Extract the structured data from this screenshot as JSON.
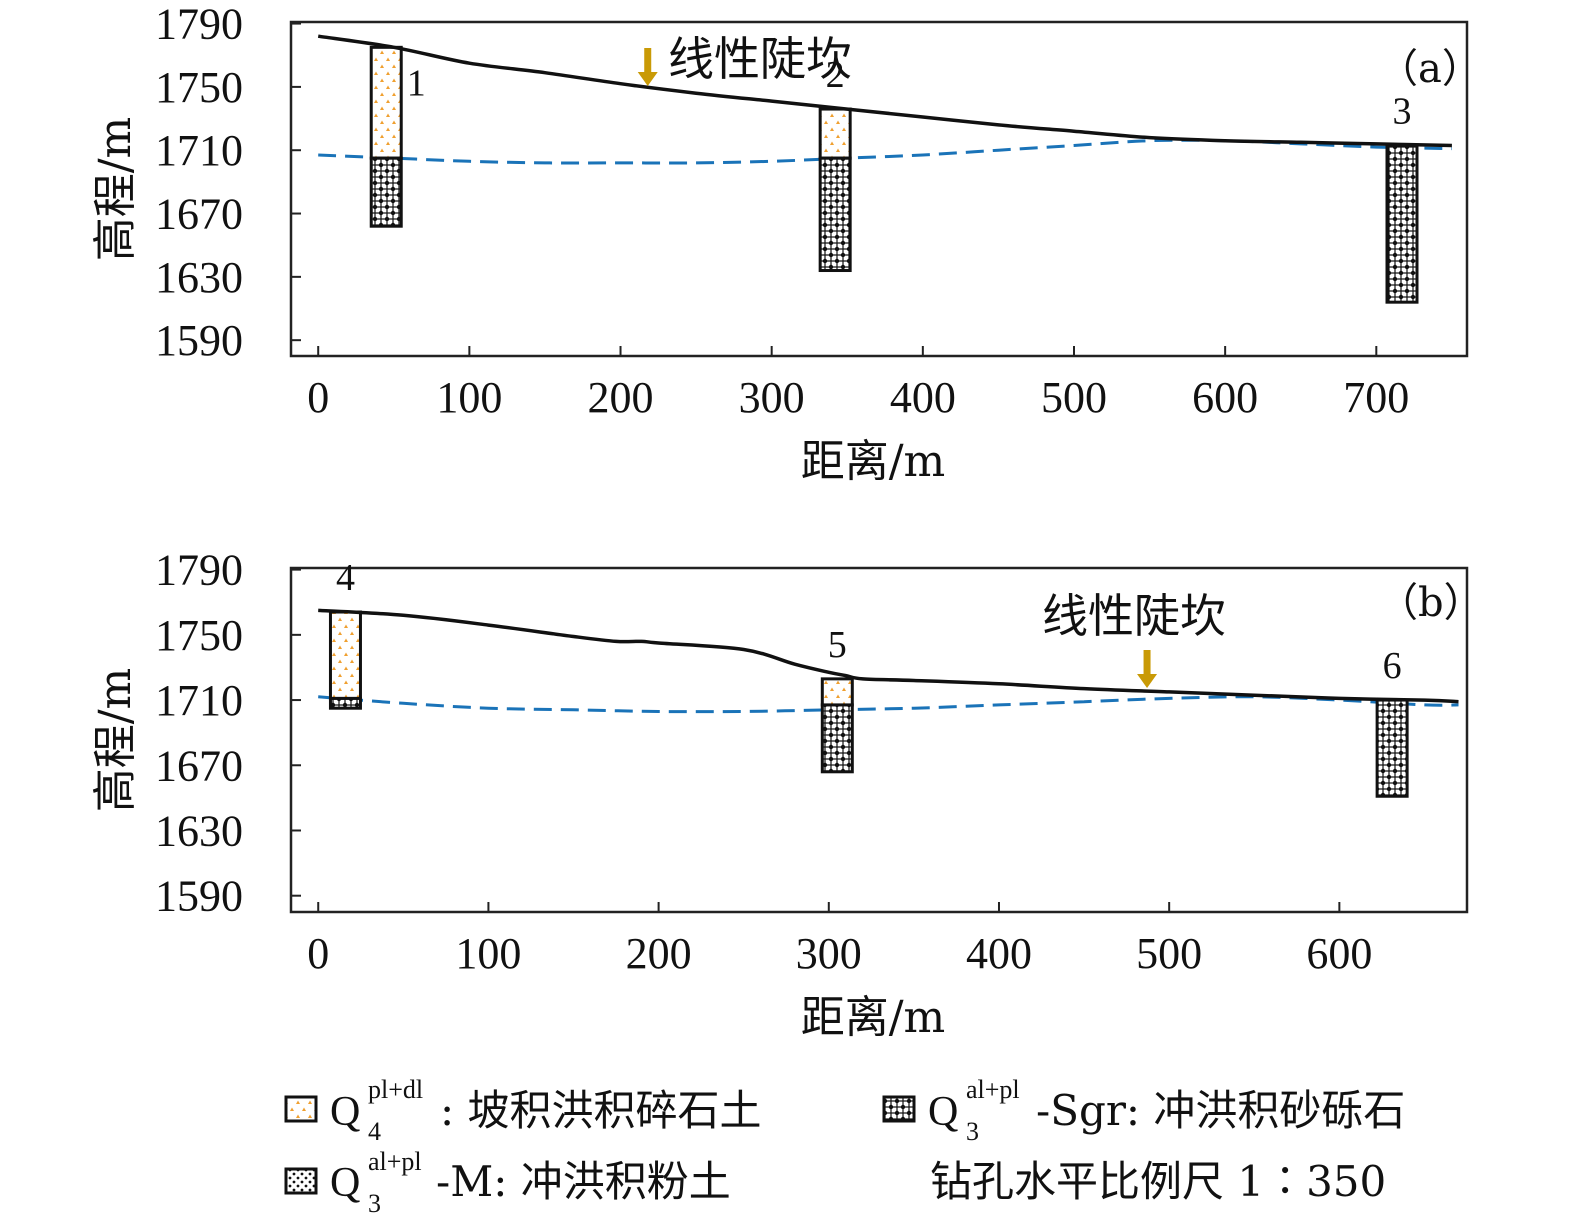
{
  "chart_data": [
    {
      "type": "line",
      "panel_label": "（a）",
      "xlabel": "距离/m",
      "ylabel": "高程/m",
      "xlim": [
        -18,
        760
      ],
      "ylim": [
        1580,
        1791
      ],
      "xticks": [
        0,
        100,
        200,
        300,
        400,
        500,
        600,
        700
      ],
      "yticks": [
        1590,
        1630,
        1670,
        1710,
        1750,
        1790
      ],
      "ground_surface": {
        "x": [
          0,
          50,
          100,
          150,
          200,
          250,
          300,
          350,
          400,
          450,
          500,
          550,
          600,
          650,
          700,
          750
        ],
        "y": [
          1782,
          1775,
          1765,
          1759,
          1752,
          1746,
          1741,
          1736,
          1731,
          1726,
          1722,
          1718,
          1716,
          1715,
          1714,
          1713
        ]
      },
      "groundwater_level": {
        "x": [
          0,
          50,
          100,
          150,
          200,
          250,
          300,
          350,
          400,
          450,
          500,
          550,
          600,
          650,
          700,
          750
        ],
        "y": [
          1707,
          1705,
          1703,
          1702,
          1702,
          1702,
          1703,
          1705,
          1707,
          1710,
          1713,
          1716,
          1716,
          1714,
          1712,
          1711
        ]
      },
      "boreholes": [
        {
          "label": "1",
          "x": 45,
          "top": 1775,
          "water": 1705,
          "bottom": 1662
        },
        {
          "label": "2",
          "x": 342,
          "top": 1736,
          "water": 1705,
          "bottom": 1634
        },
        {
          "label": "3",
          "x": 717,
          "top": 1713,
          "water": 1713,
          "bottom": 1614
        }
      ],
      "annotation": {
        "text": "线性陡坎",
        "x": 218
      }
    },
    {
      "type": "line",
      "panel_label": "（b）",
      "xlabel": "距离/m",
      "ylabel": "高程/m",
      "xlim": [
        -16,
        675
      ],
      "ylim": [
        1580,
        1791
      ],
      "xticks": [
        0,
        100,
        200,
        300,
        400,
        500,
        600
      ],
      "yticks": [
        1590,
        1630,
        1670,
        1710,
        1750,
        1790
      ],
      "ground_surface": {
        "x": [
          0,
          50,
          100,
          150,
          175,
          190,
          200,
          250,
          280,
          300,
          310,
          320,
          350,
          400,
          450,
          500,
          550,
          600,
          650,
          670
        ],
        "y": [
          1765,
          1762,
          1756,
          1749,
          1746,
          1746,
          1745,
          1741,
          1732,
          1727,
          1725,
          1723,
          1722,
          1720,
          1717,
          1715,
          1713,
          1711,
          1710,
          1709
        ]
      },
      "groundwater_level": {
        "x": [
          0,
          50,
          100,
          150,
          200,
          250,
          300,
          350,
          400,
          450,
          500,
          550,
          600,
          650,
          670
        ],
        "y": [
          1712,
          1708,
          1705,
          1704,
          1703,
          1703,
          1704,
          1705,
          1707,
          1709,
          1711,
          1712,
          1710,
          1707,
          1707
        ]
      },
      "boreholes": [
        {
          "label": "4",
          "x": 16,
          "top": 1764,
          "water": 1711,
          "bottom": 1705
        },
        {
          "label": "5",
          "x": 305,
          "top": 1723,
          "water": 1707,
          "bottom": 1666
        },
        {
          "label": "6",
          "x": 631,
          "top": 1710,
          "water": 1710,
          "bottom": 1651
        }
      ],
      "annotation": {
        "text": "线性陡坎",
        "x": 487
      }
    }
  ],
  "legend": [
    {
      "symbol": "Q",
      "sub": "4",
      "sup": "pl+dl",
      "suffix": ": 坡积洪积碎石土",
      "pattern": "gravel-soil"
    },
    {
      "symbol": "Q",
      "sub": "3",
      "sup": "al+pl",
      "suffix": "-Sgr: 冲洪积砂砾石",
      "pattern": "sandy-gravel"
    },
    {
      "symbol": "Q",
      "sub": "3",
      "sup": "al+pl",
      "suffix": "-M: 冲洪积粉土",
      "pattern": "silt"
    }
  ],
  "scale_note": "钻孔水平比例尺 1∶350",
  "colors": {
    "ground_line": "#111111",
    "water_line": "#1a73b8",
    "arrow": "#c99a06",
    "gravel_dot": "#f0a030",
    "frame": "#222222"
  }
}
